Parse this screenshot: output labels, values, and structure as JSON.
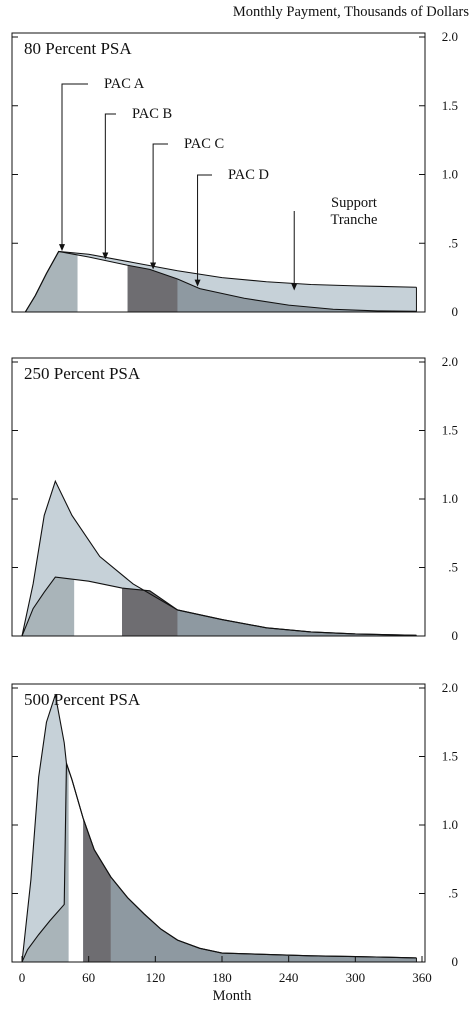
{
  "figure": {
    "y_axis_label": "Monthly Payment, Thousands of Dollars",
    "x_axis_label": "Month"
  },
  "colors": {
    "support": "#c6d1d8",
    "pac_a": "#a9b4b9",
    "pac_b": "#ffffff",
    "pac_c": "#6e6d71",
    "pac_d": "#8e99a1",
    "outline": "#111111",
    "frame": "#111111"
  },
  "chart_data": [
    {
      "type": "area",
      "title": "80 Percent PSA",
      "xlim": [
        0,
        360
      ],
      "ylim": [
        0,
        2.0
      ],
      "yticks": [
        0,
        0.5,
        1.0,
        1.5,
        2.0
      ],
      "ytick_labels": [
        "0",
        ".5",
        "1.0",
        "1.5",
        "2.0"
      ],
      "xticks": [],
      "xtick_labels": [],
      "pac_tranches": [
        {
          "name": "PAC A",
          "start": 0,
          "end": 50
        },
        {
          "name": "PAC B",
          "start": 50,
          "end": 95
        },
        {
          "name": "PAC C",
          "start": 95,
          "end": 140
        },
        {
          "name": "PAC D",
          "start": 140,
          "end": 355
        }
      ],
      "pac_curve": {
        "x": [
          3,
          12,
          22,
          33,
          60,
          95,
          115,
          140,
          160,
          200,
          240,
          280,
          320,
          355
        ],
        "y": [
          0,
          0.12,
          0.28,
          0.44,
          0.4,
          0.34,
          0.31,
          0.24,
          0.17,
          0.1,
          0.05,
          0.02,
          0.008,
          0.005
        ]
      },
      "total_curve": {
        "x": [
          3,
          12,
          22,
          33,
          60,
          100,
          140,
          180,
          220,
          260,
          300,
          355
        ],
        "y": [
          0,
          0.12,
          0.28,
          0.44,
          0.42,
          0.36,
          0.3,
          0.25,
          0.22,
          0.2,
          0.19,
          0.18
        ]
      },
      "annotations": [
        {
          "text": "PAC A",
          "x": 36
        },
        {
          "text": "PAC B",
          "x": 75
        },
        {
          "text": "PAC C",
          "x": 118
        },
        {
          "text": "PAC D",
          "x": 158
        },
        {
          "text": "Support",
          "line2": "Tranche",
          "x": 245
        }
      ]
    },
    {
      "type": "area",
      "title": "250 Percent PSA",
      "xlim": [
        0,
        360
      ],
      "ylim": [
        0,
        2.0
      ],
      "yticks": [
        0,
        0.5,
        1.0,
        1.5,
        2.0
      ],
      "ytick_labels": [
        "0",
        ".5",
        "1.0",
        "1.5",
        "2.0"
      ],
      "xticks": [],
      "xtick_labels": [],
      "pac_tranches": [
        {
          "name": "PAC A",
          "start": 0,
          "end": 47
        },
        {
          "name": "PAC B",
          "start": 47,
          "end": 90
        },
        {
          "name": "PAC C",
          "start": 90,
          "end": 140
        },
        {
          "name": "PAC D",
          "start": 140,
          "end": 355
        }
      ],
      "pac_curve": {
        "x": [
          0,
          10,
          20,
          30,
          60,
          90,
          115,
          140,
          180,
          220,
          260,
          300,
          355
        ],
        "y": [
          0,
          0.2,
          0.32,
          0.43,
          0.4,
          0.35,
          0.33,
          0.19,
          0.12,
          0.06,
          0.03,
          0.015,
          0.005
        ]
      },
      "total_curve": {
        "x": [
          0,
          10,
          20,
          30,
          45,
          70,
          100,
          140,
          180,
          220,
          260,
          300,
          355
        ],
        "y": [
          0,
          0.38,
          0.88,
          1.13,
          0.88,
          0.58,
          0.38,
          0.19,
          0.12,
          0.06,
          0.03,
          0.015,
          0.005
        ]
      }
    },
    {
      "type": "area",
      "title": "500 Percent PSA",
      "xlim": [
        0,
        360
      ],
      "ylim": [
        0,
        2.0
      ],
      "yticks": [
        0,
        0.5,
        1.0,
        1.5,
        2.0
      ],
      "ytick_labels": [
        "0",
        ".5",
        "1.0",
        "1.5",
        "2.0"
      ],
      "xticks": [
        0,
        60,
        120,
        180,
        240,
        300,
        360
      ],
      "xtick_labels": [
        "0",
        "60",
        "120",
        "180",
        "240",
        "300",
        "360"
      ],
      "pac_tranches": [
        {
          "name": "PAC A",
          "start": 0,
          "end": 42
        },
        {
          "name": "PAC B",
          "start": 42,
          "end": 55
        },
        {
          "name": "PAC C",
          "start": 55,
          "end": 80
        },
        {
          "name": "PAC D",
          "start": 80,
          "end": 355
        }
      ],
      "pac_curve": {
        "x": [
          0,
          5,
          15,
          25,
          38,
          40,
          45,
          55,
          65,
          80,
          95,
          110,
          125,
          140,
          160,
          180,
          220,
          260,
          300,
          355
        ],
        "y": [
          0,
          0.09,
          0.2,
          0.3,
          0.42,
          1.45,
          1.33,
          1.05,
          0.82,
          0.62,
          0.47,
          0.35,
          0.24,
          0.16,
          0.1,
          0.065,
          0.055,
          0.045,
          0.04,
          0.03
        ]
      },
      "total_curve": {
        "x": [
          0,
          8,
          15,
          22,
          30,
          38,
          40,
          45,
          55,
          65,
          80,
          95,
          110,
          125,
          140,
          160,
          180,
          220,
          260,
          300,
          355
        ],
        "y": [
          0,
          0.6,
          1.35,
          1.75,
          1.95,
          1.6,
          1.45,
          1.33,
          1.05,
          0.82,
          0.62,
          0.47,
          0.35,
          0.24,
          0.16,
          0.1,
          0.065,
          0.055,
          0.045,
          0.04,
          0.03
        ]
      }
    }
  ]
}
